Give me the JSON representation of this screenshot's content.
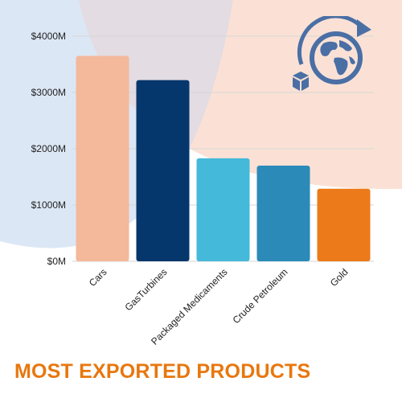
{
  "page": {
    "title": "MOST EXPORTED PRODUCTS",
    "title_color": "#E8770E",
    "background_shapes": {
      "left_blob": "#DCE7F5",
      "right_blob": "#FBE1D5",
      "overlap": "#E3DCE2"
    },
    "icon": "globe-with-box-and-rotation-arrow-icon",
    "icon_color": "#4A6FA5"
  },
  "chart_data": {
    "type": "bar",
    "title": "",
    "xlabel": "",
    "ylabel": "",
    "categories": [
      "Cars",
      "GasTurbines",
      "Packaged Medicaments",
      "Crude Petroleum",
      "Gold"
    ],
    "values": [
      3650,
      3220,
      1830,
      1700,
      1290
    ],
    "colors": [
      "#F4B89B",
      "#06376C",
      "#45B9D9",
      "#2B8AB8",
      "#EC7A1A"
    ],
    "ylim": [
      0,
      4000
    ],
    "yticks": [
      0,
      1000,
      2000,
      3000,
      4000
    ],
    "ytick_labels": [
      "$0M",
      "$1000M",
      "$2000M",
      "$3000M",
      "$4000M"
    ],
    "grid": true,
    "legend": "none"
  }
}
